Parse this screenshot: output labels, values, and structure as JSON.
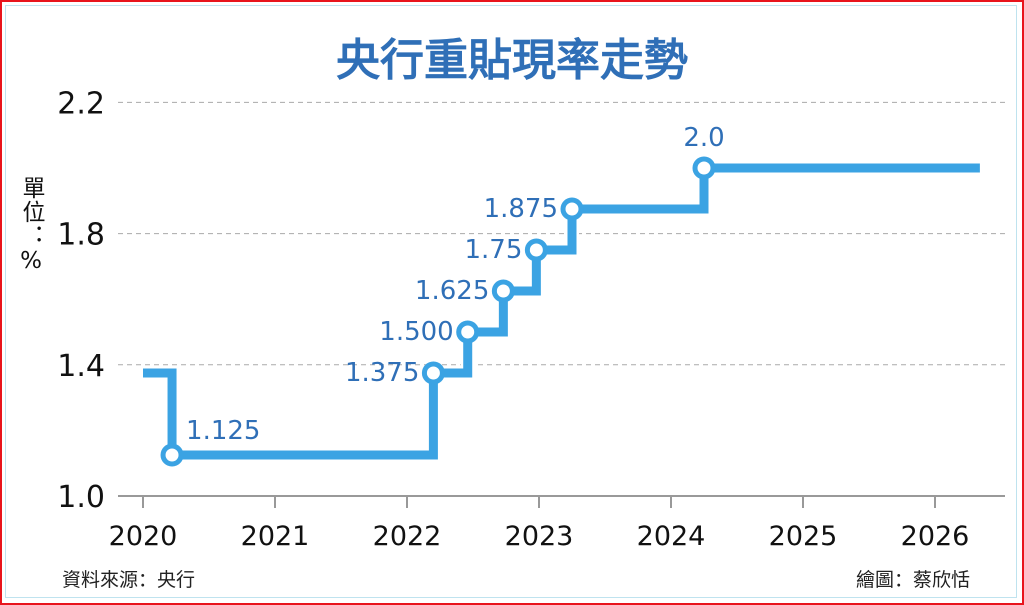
{
  "chart_data": {
    "type": "line",
    "step": true,
    "title": "央行重貼現率走勢",
    "ylabel": "單位：%",
    "source": "資料來源：央行",
    "credit": "繪圖：蔡欣恬",
    "xlim": [
      2020,
      2026.5
    ],
    "ylim": [
      1.0,
      2.2
    ],
    "x_ticks": [
      "2020",
      "2021",
      "2022",
      "2023",
      "2024",
      "2025",
      "2026"
    ],
    "y_ticks": [
      "1.0",
      "1.4",
      "1.8",
      "2.2"
    ],
    "grid": true,
    "series": [
      {
        "name": "重貼現率",
        "color": "#3ba3e3",
        "start": {
          "x": 2020.0,
          "y": 1.375
        },
        "end": {
          "x": 2026.34,
          "y": 2.0
        },
        "points": [
          {
            "x": 2020.22,
            "y": 1.125,
            "label": "1.125"
          },
          {
            "x": 2022.2,
            "y": 1.375,
            "label": "1.375"
          },
          {
            "x": 2022.46,
            "y": 1.5,
            "label": "1.500"
          },
          {
            "x": 2022.73,
            "y": 1.625,
            "label": "1.625"
          },
          {
            "x": 2022.98,
            "y": 1.75,
            "label": "1.75"
          },
          {
            "x": 2023.25,
            "y": 1.875,
            "label": "1.875"
          },
          {
            "x": 2024.25,
            "y": 2.0,
            "label": "2.0"
          }
        ]
      }
    ],
    "label_color": "#2f6fb7"
  }
}
